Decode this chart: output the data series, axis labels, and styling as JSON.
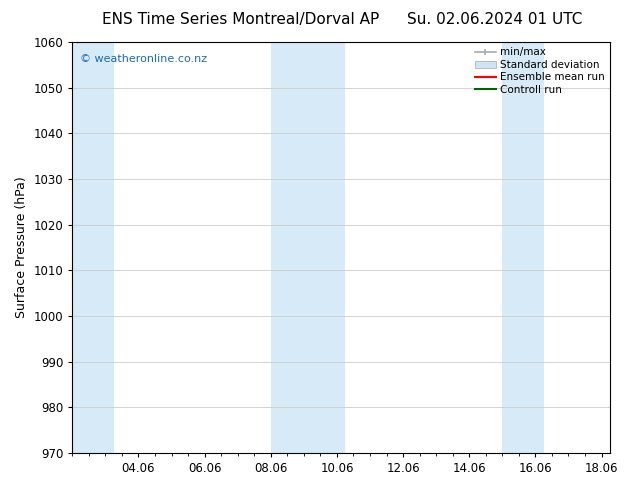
{
  "title_left": "ENS Time Series Montreal/Dorval AP",
  "title_right": "Su. 02.06.2024 01 UTC",
  "ylabel": "Surface Pressure (hPa)",
  "watermark": "© weatheronline.co.nz",
  "watermark_color": "#1a6bb5",
  "ylim": [
    970,
    1060
  ],
  "yticks": [
    970,
    980,
    990,
    1000,
    1010,
    1020,
    1030,
    1040,
    1050,
    1060
  ],
  "xtick_labels": [
    "04.06",
    "06.06",
    "08.06",
    "10.06",
    "12.06",
    "14.06",
    "16.06",
    "18.06"
  ],
  "xtick_positions": [
    2,
    4,
    6,
    8,
    10,
    12,
    14,
    16
  ],
  "xlim": [
    0,
    16.25
  ],
  "shaded_bands": [
    {
      "x_start": 0.0,
      "x_end": 1.25,
      "color": "#d6eaf8"
    },
    {
      "x_start": 6.0,
      "x_end": 8.25,
      "color": "#d6eaf8"
    },
    {
      "x_start": 13.0,
      "x_end": 14.25,
      "color": "#d6eaf8"
    }
  ],
  "legend_minmax_color": "#aaaaaa",
  "legend_std_color": "#cde4f5",
  "legend_ens_color": "#ff0000",
  "legend_ctrl_color": "#006400",
  "bg_color": "#ffffff",
  "grid_color": "#cccccc",
  "title_fontsize": 11,
  "tick_fontsize": 8.5,
  "ylabel_fontsize": 9,
  "legend_fontsize": 7.5
}
